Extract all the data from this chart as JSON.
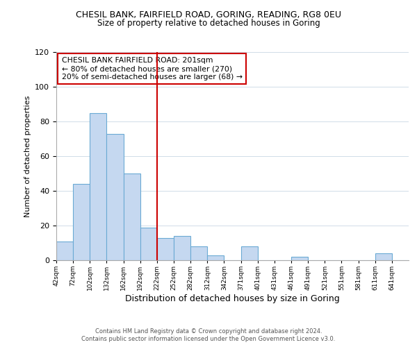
{
  "title1": "CHESIL BANK, FAIRFIELD ROAD, GORING, READING, RG8 0EU",
  "title2": "Size of property relative to detached houses in Goring",
  "xlabel": "Distribution of detached houses by size in Goring",
  "ylabel": "Number of detached properties",
  "bin_labels": [
    "42sqm",
    "72sqm",
    "102sqm",
    "132sqm",
    "162sqm",
    "192sqm",
    "222sqm",
    "252sqm",
    "282sqm",
    "312sqm",
    "342sqm",
    "371sqm",
    "401sqm",
    "431sqm",
    "461sqm",
    "491sqm",
    "521sqm",
    "551sqm",
    "581sqm",
    "611sqm",
    "641sqm"
  ],
  "bar_values": [
    11,
    44,
    85,
    73,
    50,
    19,
    13,
    14,
    8,
    3,
    0,
    8,
    0,
    0,
    2,
    0,
    0,
    0,
    0,
    4,
    0
  ],
  "bar_color": "#c5d8f0",
  "bar_edge_color": "#6aaad4",
  "vline_x": 6.0,
  "vline_color": "#cc0000",
  "annotation_text": "CHESIL BANK FAIRFIELD ROAD: 201sqm\n← 80% of detached houses are smaller (270)\n20% of semi-detached houses are larger (68) →",
  "annotation_box_edge": "#cc0000",
  "ylim": [
    0,
    120
  ],
  "yticks": [
    0,
    20,
    40,
    60,
    80,
    100,
    120
  ],
  "footer1": "Contains HM Land Registry data © Crown copyright and database right 2024.",
  "footer2": "Contains public sector information licensed under the Open Government Licence v3.0.",
  "bg_color": "#ffffff",
  "plot_bg": "#ffffff"
}
